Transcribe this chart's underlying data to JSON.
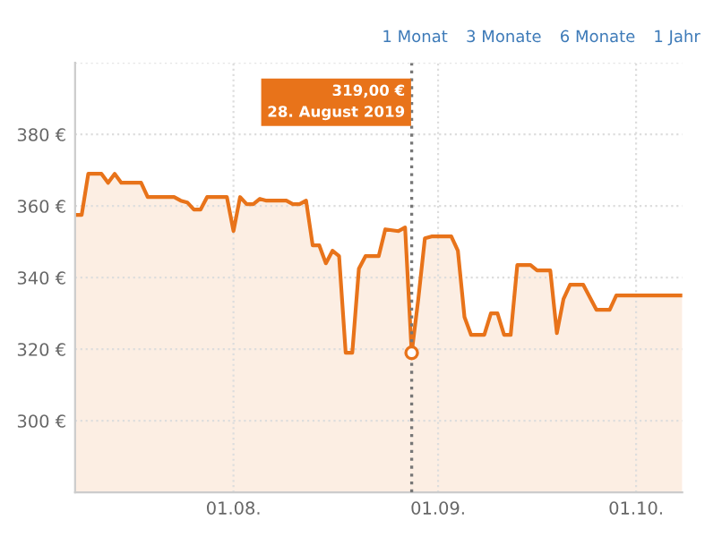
{
  "chart_data": {
    "type": "area",
    "x": [
      "2019-07-08",
      "2019-07-09",
      "2019-07-10",
      "2019-07-12",
      "2019-07-13",
      "2019-07-14",
      "2019-07-15",
      "2019-07-18",
      "2019-07-19",
      "2019-07-23",
      "2019-07-24",
      "2019-07-25",
      "2019-07-26",
      "2019-07-27",
      "2019-07-28",
      "2019-07-31",
      "2019-08-01",
      "2019-08-02",
      "2019-08-03",
      "2019-08-04",
      "2019-08-05",
      "2019-08-06",
      "2019-08-09",
      "2019-08-10",
      "2019-08-11",
      "2019-08-12",
      "2019-08-13",
      "2019-08-14",
      "2019-08-15",
      "2019-08-16",
      "2019-08-17",
      "2019-08-18",
      "2019-08-19",
      "2019-08-20",
      "2019-08-21",
      "2019-08-23",
      "2019-08-24",
      "2019-08-26",
      "2019-08-27",
      "2019-08-28",
      "2019-08-29",
      "2019-08-30",
      "2019-08-31",
      "2019-09-03",
      "2019-09-04",
      "2019-09-05",
      "2019-09-06",
      "2019-09-08",
      "2019-09-09",
      "2019-09-10",
      "2019-09-11",
      "2019-09-12",
      "2019-09-13",
      "2019-09-15",
      "2019-09-16",
      "2019-09-18",
      "2019-09-19",
      "2019-09-20",
      "2019-09-21",
      "2019-09-23",
      "2019-09-25",
      "2019-09-27",
      "2019-09-28",
      "2019-10-08"
    ],
    "series": [
      {
        "color": "#e8731a",
        "values": [
          357.5,
          357.5,
          369,
          369,
          366.5,
          369,
          366.5,
          366.5,
          362.5,
          362.5,
          361.5,
          361,
          359,
          359,
          362.5,
          362.5,
          353,
          362.5,
          360.5,
          360.5,
          362,
          361.5,
          361.5,
          360.5,
          360.5,
          361.5,
          349,
          349,
          344,
          347.5,
          346,
          319,
          319,
          342.5,
          346,
          346,
          353.5,
          353,
          354,
          319,
          334,
          351,
          351.5,
          351.5,
          347.5,
          329,
          324,
          324,
          330,
          330,
          324,
          324,
          343.5,
          343.5,
          342,
          342,
          324.5,
          334,
          338,
          338,
          331,
          331,
          335,
          335
        ]
      },
      {
        "type": "scatter",
        "color": "#e8731a",
        "marker": "circle",
        "x": [
          "2019-08-28"
        ],
        "values": [
          319
        ]
      }
    ],
    "xlim": [
      "2019-07-08",
      "2019-10-08"
    ],
    "xticks": [
      {
        "value": "2019-08-01",
        "label": "01.08."
      },
      {
        "value": "2019-09-01",
        "label": "01.09."
      },
      {
        "value": "2019-10-01",
        "label": "01.10."
      }
    ],
    "ylim": [
      280,
      400
    ],
    "yticks": [
      {
        "value": 300,
        "label": "300 €"
      },
      {
        "value": 320,
        "label": "320 €"
      },
      {
        "value": 340,
        "label": "340 €"
      },
      {
        "value": 360,
        "label": "360 €"
      },
      {
        "value": 380,
        "label": "380 €"
      },
      {
        "value": 400,
        "label": null
      }
    ],
    "grid": true,
    "ref_lines": [
      {
        "axis": "x",
        "value": "2019-08-28",
        "color": "#777777",
        "line_style": "dotted"
      }
    ],
    "annotations": [
      "319,00 €\n28. August 2019",
      "1 Monat",
      "3 Monate",
      "6 Monate",
      "1 Jahr"
    ]
  }
}
